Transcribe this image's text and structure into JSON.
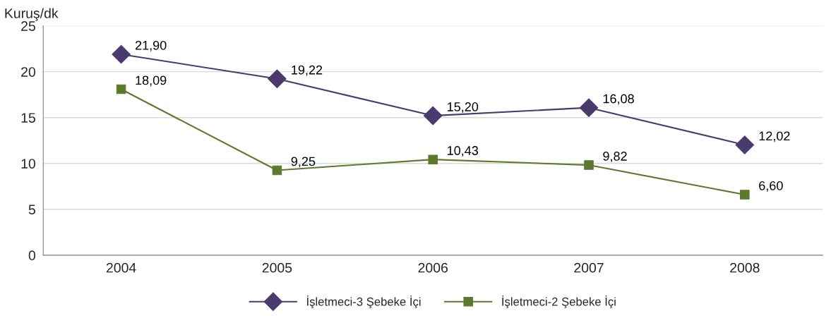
{
  "chart_data": {
    "type": "line",
    "ylabel": "Kuruş/dk",
    "categories": [
      "2004",
      "2005",
      "2006",
      "2007",
      "2008"
    ],
    "series": [
      {
        "name": "İşletmeci-3 Şebeke İçi",
        "color": "#4b3a6e",
        "marker": "diamond",
        "values": [
          21.9,
          19.22,
          15.2,
          16.08,
          12.02
        ],
        "value_labels": [
          "21,90",
          "19,22",
          "15,20",
          "16,08",
          "12,02"
        ]
      },
      {
        "name": "İşletmeci-2 Şebeke İçi",
        "color": "#5b7a2e",
        "marker": "square",
        "values": [
          18.09,
          9.25,
          10.43,
          9.82,
          6.6
        ],
        "value_labels": [
          "18,09",
          "9,25",
          "10,43",
          "9,82",
          "6,60"
        ]
      }
    ],
    "ylim": [
      0,
      25
    ],
    "yticks": [
      0,
      5,
      10,
      15,
      20,
      25
    ],
    "grid": "y",
    "legend": "bottom",
    "line_style": "solid"
  }
}
